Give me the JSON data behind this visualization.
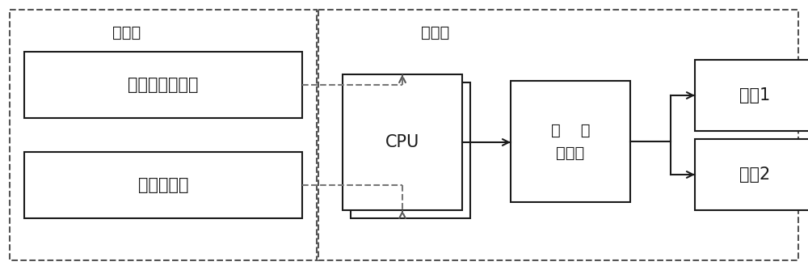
{
  "fig_width": 10.0,
  "fig_height": 3.34,
  "bg_color": "#ffffff",
  "box_color": "#1a1a1a",
  "dashed_color": "#555555",
  "text_color": "#1a1a1a",
  "label_hat": "帽子端",
  "label_wheel": "轮椅端",
  "label_eeg": "脑电波采集模块",
  "label_sensor": "多轴传感器",
  "label_cpu": "CPU",
  "label_controller_line1": "轮    椅",
  "label_controller_line2": "控制器",
  "label_motor1": "电机1",
  "label_motor2": "电机2",
  "font_size_title": 13,
  "font_size_box": 14,
  "font_size_cpu": 13,
  "font_size_motor": 13
}
